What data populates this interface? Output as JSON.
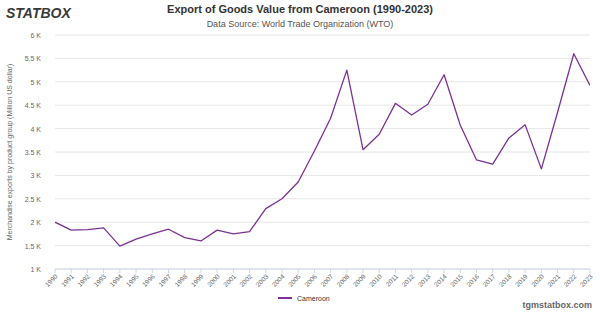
{
  "chart_data": {
    "type": "line",
    "title": "Export of Goods Value from Cameroon (1990-2023)",
    "subtitle": "Data Source: World Trade Organization (WTO)",
    "brand": "STATBOX",
    "watermark": "tgmstatbox.com",
    "y_label": "Merchandise exports by product group (Million US dollar)",
    "categories": [
      "1990",
      "1991",
      "1992",
      "1993",
      "1994",
      "1995",
      "1996",
      "1997",
      "1998",
      "1999",
      "2000",
      "2001",
      "2002",
      "2003",
      "2004",
      "2005",
      "2006",
      "2007",
      "2008",
      "2009",
      "2010",
      "2011",
      "2012",
      "2013",
      "2014",
      "2015",
      "2016",
      "2017",
      "2018",
      "2019",
      "2020",
      "2021",
      "2022",
      "2023"
    ],
    "series": [
      {
        "name": "Cameroon",
        "color": "#7b3294",
        "values": [
          2000,
          1830,
          1840,
          1880,
          1490,
          1640,
          1750,
          1850,
          1670,
          1600,
          1830,
          1750,
          1800,
          2290,
          2500,
          2860,
          3520,
          4220,
          5250,
          3550,
          3880,
          4540,
          4290,
          4520,
          5150,
          4070,
          3330,
          3240,
          3800,
          4080,
          3140,
          4350,
          5600,
          4920
        ]
      }
    ],
    "ylim": [
      1000,
      6000
    ],
    "yticks": [
      {
        "value": 1000,
        "label": "1 K"
      },
      {
        "value": 1500,
        "label": "1.5 K"
      },
      {
        "value": 2000,
        "label": "2 K"
      },
      {
        "value": 2500,
        "label": "2.5 K"
      },
      {
        "value": 3000,
        "label": "3 K"
      },
      {
        "value": 3500,
        "label": "3.5 K"
      },
      {
        "value": 4000,
        "label": "4 K"
      },
      {
        "value": 4500,
        "label": "4.5 K"
      },
      {
        "value": 5000,
        "label": "5 K"
      },
      {
        "value": 5500,
        "label": "5.5 K"
      },
      {
        "value": 6000,
        "label": "6 K"
      }
    ],
    "grid": true,
    "legend": "bottom"
  }
}
